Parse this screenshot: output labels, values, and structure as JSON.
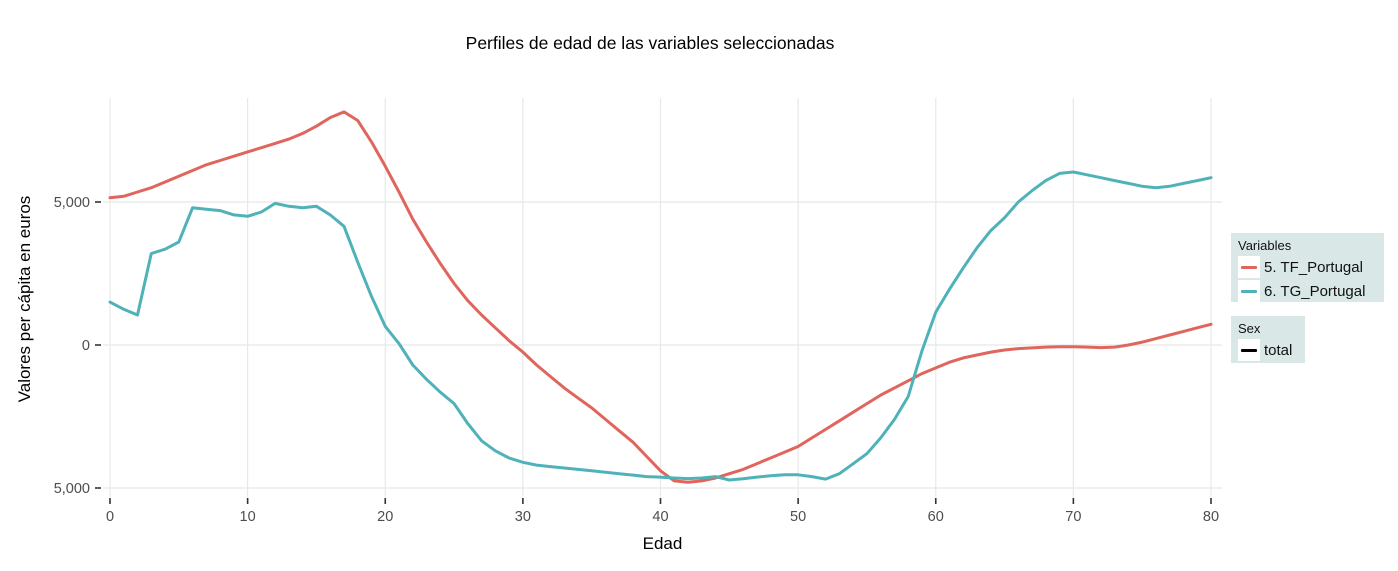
{
  "title": "Perfiles de edad de las variables seleccionadas",
  "x_axis": {
    "label": "Edad",
    "tick_labels": [
      "0",
      "10",
      "20",
      "30",
      "40",
      "50",
      "60",
      "70",
      "80"
    ]
  },
  "y_axis": {
    "label": "Valores per cápita en euros",
    "tick_labels": [
      "5,000",
      "0",
      "5,000"
    ]
  },
  "legend": {
    "background": "#d9e8e6",
    "variables": {
      "title": "Variables",
      "entries": [
        {
          "label": "5. TF_Portugal",
          "color": "#e0655c"
        },
        {
          "label": "6. TG_Portugal",
          "color": "#4fb2b9"
        }
      ]
    },
    "sex": {
      "title": "Sex",
      "entries": [
        {
          "label": "total",
          "color": "#000000"
        }
      ]
    }
  },
  "colors": {
    "background": "#ffffff",
    "gridline": "#e8e8e8",
    "tick_mark": "#333333",
    "tick_label": "#4d4d4d",
    "tf_line": "#e0655c",
    "tg_line": "#4fb2b9"
  },
  "chart_data": {
    "type": "line",
    "title": "Perfiles de edad de las variables seleccionadas",
    "xlabel": "Edad",
    "ylabel": "Valores per cápita en euros",
    "xlim": [
      0,
      80
    ],
    "ylim": [
      -5300,
      8650
    ],
    "x_ticks": [
      0,
      10,
      20,
      30,
      40,
      50,
      60,
      70,
      80
    ],
    "y_gridline_values": [
      5000,
      0,
      -5000
    ],
    "y_tick_display": [
      "5,000",
      "0",
      "5,000"
    ],
    "grid": true,
    "legend_position": "right",
    "x": [
      0,
      1,
      2,
      3,
      4,
      5,
      6,
      7,
      8,
      9,
      10,
      11,
      12,
      13,
      14,
      15,
      16,
      17,
      18,
      19,
      20,
      21,
      22,
      23,
      24,
      25,
      26,
      27,
      28,
      29,
      30,
      31,
      32,
      33,
      34,
      35,
      36,
      37,
      38,
      39,
      40,
      41,
      42,
      43,
      44,
      45,
      46,
      47,
      48,
      49,
      50,
      51,
      52,
      53,
      54,
      55,
      56,
      57,
      58,
      59,
      60,
      61,
      62,
      63,
      64,
      65,
      66,
      67,
      68,
      69,
      70,
      71,
      72,
      73,
      74,
      75,
      76,
      77,
      78,
      79,
      80
    ],
    "series": [
      {
        "name": "5. TF_Portugal",
        "color": "#e0655c",
        "values": [
          5150,
          5200,
          5350,
          5500,
          5700,
          5900,
          6100,
          6300,
          6450,
          6600,
          6750,
          6900,
          7050,
          7200,
          7400,
          7650,
          7950,
          8150,
          7850,
          7100,
          6250,
          5350,
          4400,
          3600,
          2850,
          2150,
          1550,
          1050,
          600,
          150,
          -250,
          -700,
          -1100,
          -1500,
          -1850,
          -2200,
          -2600,
          -3000,
          -3400,
          -3900,
          -4400,
          -4750,
          -4800,
          -4750,
          -4650,
          -4500,
          -4350,
          -4150,
          -3950,
          -3750,
          -3550,
          -3250,
          -2950,
          -2650,
          -2350,
          -2050,
          -1750,
          -1500,
          -1250,
          -1000,
          -800,
          -600,
          -450,
          -350,
          -250,
          -175,
          -125,
          -100,
          -75,
          -60,
          -60,
          -75,
          -90,
          -75,
          0,
          100,
          225,
          350,
          475,
          600,
          725
        ]
      },
      {
        "name": "6. TG_Portugal",
        "color": "#4fb2b9",
        "values": [
          1500,
          1250,
          1050,
          3200,
          3350,
          3600,
          4800,
          4750,
          4700,
          4550,
          4500,
          4650,
          4950,
          4850,
          4800,
          4850,
          4550,
          4150,
          2900,
          1700,
          650,
          50,
          -700,
          -1200,
          -1650,
          -2050,
          -2750,
          -3350,
          -3700,
          -3950,
          -4100,
          -4200,
          -4250,
          -4300,
          -4350,
          -4400,
          -4450,
          -4500,
          -4550,
          -4600,
          -4620,
          -4650,
          -4670,
          -4650,
          -4600,
          -4720,
          -4680,
          -4620,
          -4570,
          -4540,
          -4540,
          -4600,
          -4690,
          -4500,
          -4150,
          -3800,
          -3250,
          -2600,
          -1800,
          -200,
          1150,
          1950,
          2700,
          3400,
          4000,
          4450,
          5000,
          5400,
          5750,
          6000,
          6050,
          5950,
          5850,
          5750,
          5650,
          5550,
          5500,
          5550,
          5650,
          5750,
          5850
        ]
      }
    ]
  }
}
